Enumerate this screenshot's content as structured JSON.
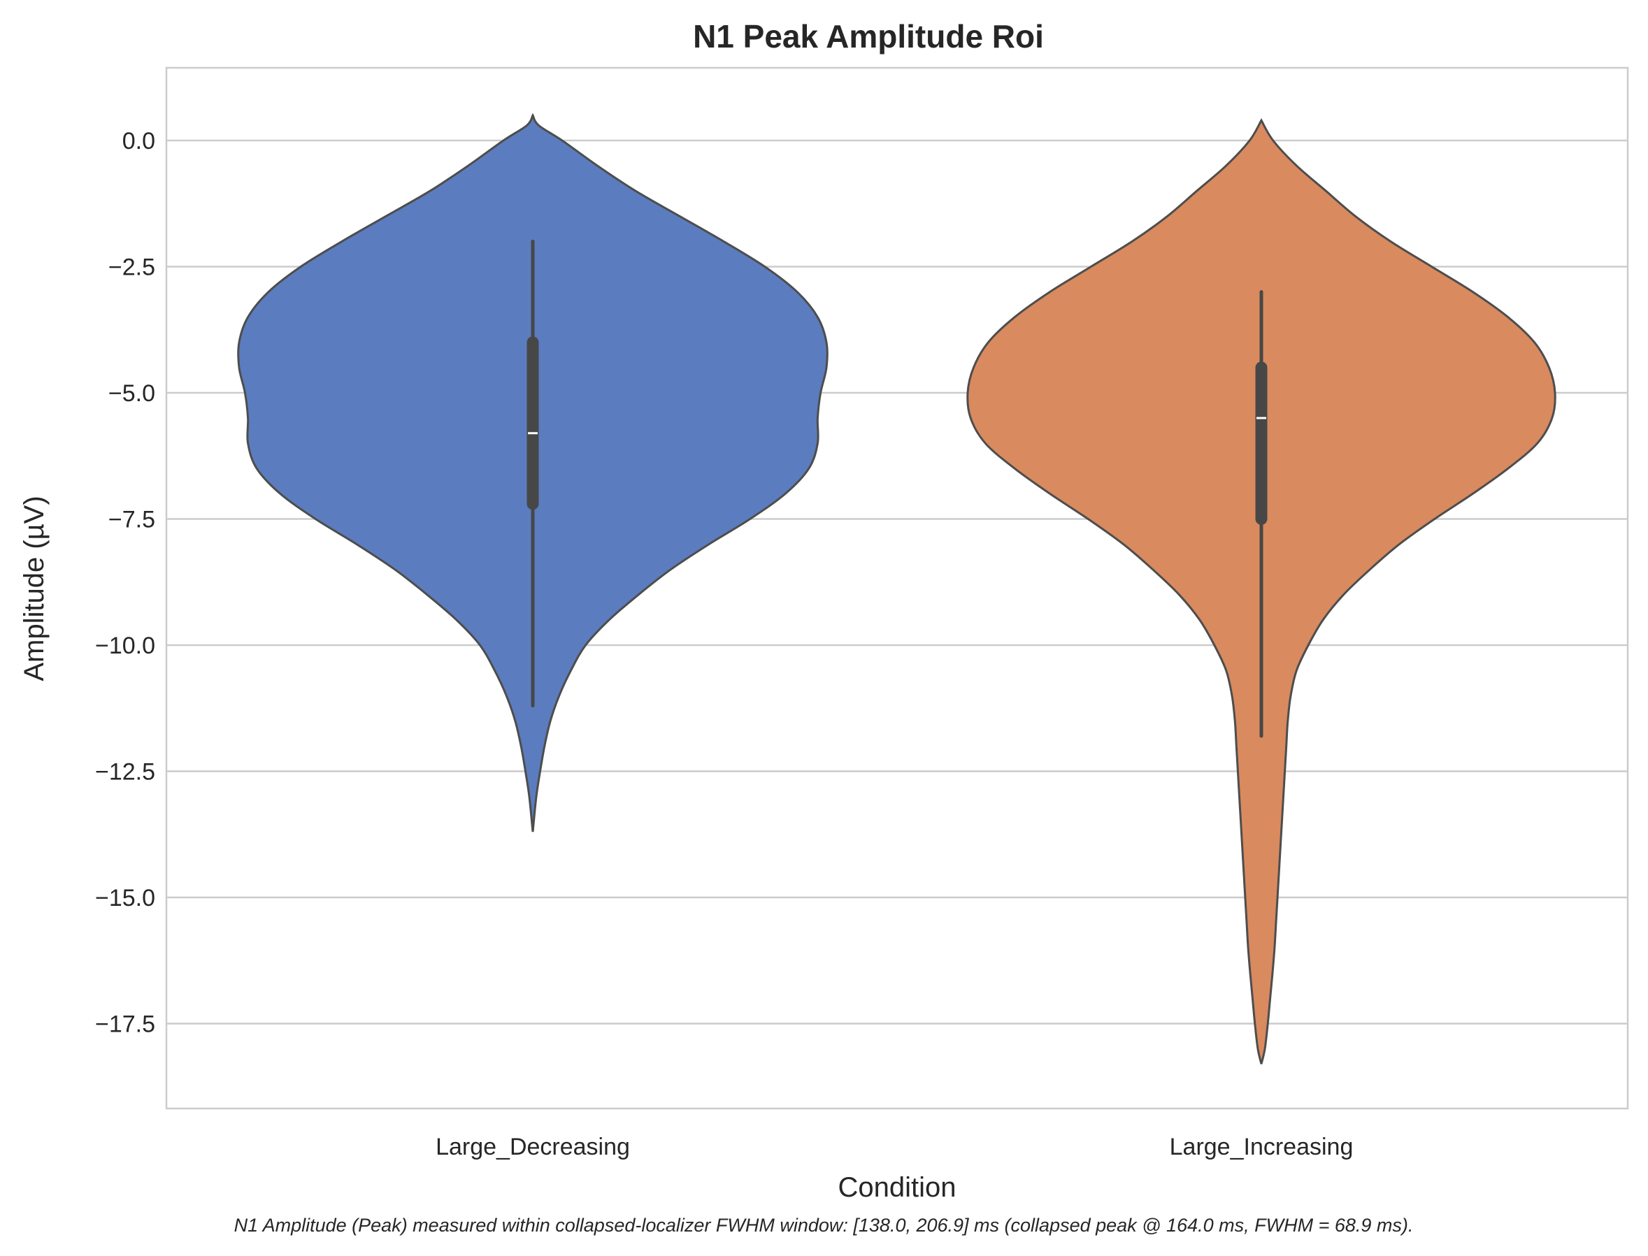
{
  "chart_data": {
    "type": "violin",
    "title": "N1 Peak Amplitude Roi",
    "xlabel": "Condition",
    "ylabel": "Amplitude (µV)",
    "caption": "N1 Amplitude (Peak) measured within collapsed-localizer FWHM window: [138.0, 206.9] ms (collapsed peak @ 164.0 ms, FWHM = 68.9 ms).",
    "ylim": [
      -19.2,
      1.45
    ],
    "yticks": [
      0.0,
      -2.5,
      -5.0,
      -7.5,
      -10.0,
      -12.5,
      -15.0,
      -17.5
    ],
    "ytick_labels": [
      "0.0",
      "−2.5",
      "−5.0",
      "−7.5",
      "−10.0",
      "−12.5",
      "−15.0",
      "−17.5"
    ],
    "grid": "horizontal",
    "legend": "none",
    "categories": [
      "Large_Decreasing",
      "Large_Increasing"
    ],
    "series": [
      {
        "color": "#5b7dbf",
        "y_min": -11.2,
        "q1": -7.2,
        "median": -5.8,
        "q3": -4.0,
        "y_max": -2.0,
        "kde_top": 0.5,
        "kde_bottom": -13.7,
        "density_profile": [
          [
            0.5,
            0.0
          ],
          [
            0.3,
            0.02
          ],
          [
            0.0,
            0.1
          ],
          [
            -0.5,
            0.22
          ],
          [
            -1.0,
            0.35
          ],
          [
            -1.5,
            0.5
          ],
          [
            -2.0,
            0.65
          ],
          [
            -2.5,
            0.79
          ],
          [
            -3.0,
            0.9
          ],
          [
            -3.5,
            0.97
          ],
          [
            -4.0,
            1.0
          ],
          [
            -4.5,
            1.0
          ],
          [
            -5.0,
            0.98
          ],
          [
            -5.5,
            0.97
          ],
          [
            -6.0,
            0.97
          ],
          [
            -6.5,
            0.94
          ],
          [
            -7.0,
            0.86
          ],
          [
            -7.5,
            0.74
          ],
          [
            -8.0,
            0.6
          ],
          [
            -8.5,
            0.47
          ],
          [
            -9.0,
            0.36
          ],
          [
            -9.5,
            0.26
          ],
          [
            -10.0,
            0.18
          ],
          [
            -10.5,
            0.13
          ],
          [
            -11.0,
            0.09
          ],
          [
            -11.5,
            0.06
          ],
          [
            -12.0,
            0.04
          ],
          [
            -12.5,
            0.025
          ],
          [
            -13.0,
            0.012
          ],
          [
            -13.7,
            0.0
          ]
        ]
      },
      {
        "color": "#d98a5f",
        "y_min": -11.8,
        "q1": -7.5,
        "median": -5.5,
        "q3": -4.5,
        "y_max": -3.0,
        "kde_top": 0.4,
        "kde_bottom": -18.3,
        "density_profile": [
          [
            0.4,
            0.0
          ],
          [
            0.0,
            0.04
          ],
          [
            -0.5,
            0.12
          ],
          [
            -1.0,
            0.22
          ],
          [
            -1.5,
            0.32
          ],
          [
            -2.0,
            0.44
          ],
          [
            -2.5,
            0.58
          ],
          [
            -3.0,
            0.72
          ],
          [
            -3.5,
            0.84
          ],
          [
            -4.0,
            0.93
          ],
          [
            -4.5,
            0.98
          ],
          [
            -5.0,
            1.0
          ],
          [
            -5.5,
            0.99
          ],
          [
            -6.0,
            0.94
          ],
          [
            -6.5,
            0.84
          ],
          [
            -7.0,
            0.72
          ],
          [
            -7.5,
            0.59
          ],
          [
            -8.0,
            0.47
          ],
          [
            -8.5,
            0.37
          ],
          [
            -9.0,
            0.28
          ],
          [
            -9.5,
            0.21
          ],
          [
            -10.0,
            0.16
          ],
          [
            -10.5,
            0.12
          ],
          [
            -11.0,
            0.1
          ],
          [
            -11.5,
            0.09
          ],
          [
            -12.0,
            0.085
          ],
          [
            -12.5,
            0.08
          ],
          [
            -13.0,
            0.075
          ],
          [
            -13.5,
            0.07
          ],
          [
            -14.0,
            0.065
          ],
          [
            -14.5,
            0.06
          ],
          [
            -15.0,
            0.055
          ],
          [
            -15.5,
            0.05
          ],
          [
            -16.0,
            0.045
          ],
          [
            -16.5,
            0.038
          ],
          [
            -17.0,
            0.03
          ],
          [
            -17.5,
            0.022
          ],
          [
            -18.0,
            0.012
          ],
          [
            -18.3,
            0.0
          ]
        ]
      }
    ]
  }
}
